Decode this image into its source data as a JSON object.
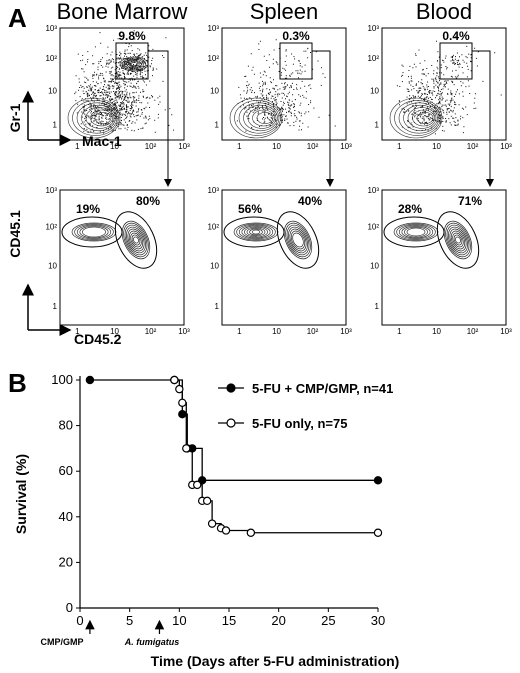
{
  "panel_a": {
    "letter": "A",
    "columns": [
      {
        "title": "Bone Marrow",
        "gate_pct": "9.8%",
        "cd451_pct": "19%",
        "cd452_pct": "80%"
      },
      {
        "title": "Spleen",
        "gate_pct": "0.3%",
        "cd451_pct": "56%",
        "cd452_pct": "40%"
      },
      {
        "title": "Blood",
        "gate_pct": "0.4%",
        "cd451_pct": "28%",
        "cd452_pct": "71%"
      }
    ],
    "top_ylabel": "Gr-1",
    "top_xlabel": "Mac-1",
    "bottom_ylabel": "CD45.1",
    "bottom_xlabel": "CD45.2",
    "tick_labels": [
      "1",
      "10",
      "10²",
      "10³"
    ]
  },
  "panel_b": {
    "letter": "B",
    "annotations": {
      "cmp": "CMP/GMP",
      "af": "A. fumigatus"
    }
  },
  "chart_data": {
    "type": "line",
    "title": "",
    "xlabel": "Time (Days after 5-FU administration)",
    "ylabel": "Survival (%)",
    "xlim": [
      0,
      30
    ],
    "ylim": [
      0,
      100
    ],
    "xticks": [
      0,
      5,
      10,
      15,
      20,
      25,
      30
    ],
    "yticks": [
      0,
      20,
      40,
      60,
      80,
      100
    ],
    "series": [
      {
        "name": "5-FU + CMP/GMP, n=41",
        "marker": "filled",
        "x": [
          1,
          9.5,
          10.3,
          10.8,
          11.3,
          12.3,
          30
        ],
        "y": [
          100,
          100,
          85,
          70,
          70,
          56,
          56
        ]
      },
      {
        "name": "5-FU only, n=75",
        "marker": "open",
        "x": [
          9.5,
          10,
          10.3,
          10.7,
          11.3,
          11.8,
          12.3,
          12.8,
          13.3,
          14.2,
          14.7,
          17.2,
          30
        ],
        "y": [
          100,
          96,
          90,
          70,
          54,
          54,
          47,
          47,
          37,
          35,
          34,
          33,
          33
        ]
      }
    ]
  }
}
